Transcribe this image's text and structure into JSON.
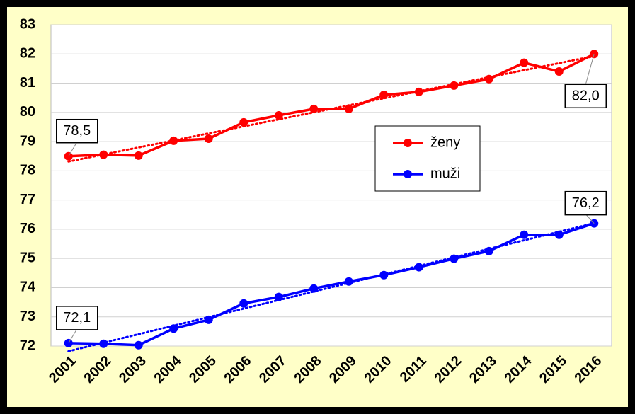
{
  "chart_data": {
    "type": "line",
    "categories": [
      "2001",
      "2002",
      "2003",
      "2004",
      "2005",
      "2006",
      "2007",
      "2008",
      "2009",
      "2010",
      "2011",
      "2012",
      "2013",
      "2014",
      "2015",
      "2016"
    ],
    "series": [
      {
        "name": "ženy",
        "color": "#ff0000",
        "values": [
          78.5,
          78.55,
          78.52,
          79.03,
          79.1,
          79.66,
          79.9,
          80.12,
          80.12,
          80.6,
          80.7,
          80.92,
          81.14,
          81.7,
          81.4,
          82.0
        ],
        "value_labels": [
          "78,5",
          null,
          null,
          null,
          null,
          null,
          null,
          null,
          null,
          null,
          null,
          null,
          null,
          null,
          null,
          "82,0"
        ]
      },
      {
        "name": "muži",
        "color": "#0000ff",
        "values": [
          72.1,
          72.08,
          72.03,
          72.6,
          72.9,
          73.46,
          73.68,
          73.97,
          74.21,
          74.43,
          74.7,
          74.99,
          75.25,
          75.81,
          75.81,
          76.2
        ],
        "value_labels": [
          "72,1",
          null,
          null,
          null,
          null,
          null,
          null,
          null,
          null,
          null,
          null,
          null,
          null,
          null,
          null,
          "76,2"
        ]
      }
    ],
    "ylim": [
      72,
      83
    ],
    "yticks": [
      72,
      73,
      74,
      75,
      76,
      77,
      78,
      79,
      80,
      81,
      82,
      83
    ],
    "grid": true,
    "trendline": true
  }
}
